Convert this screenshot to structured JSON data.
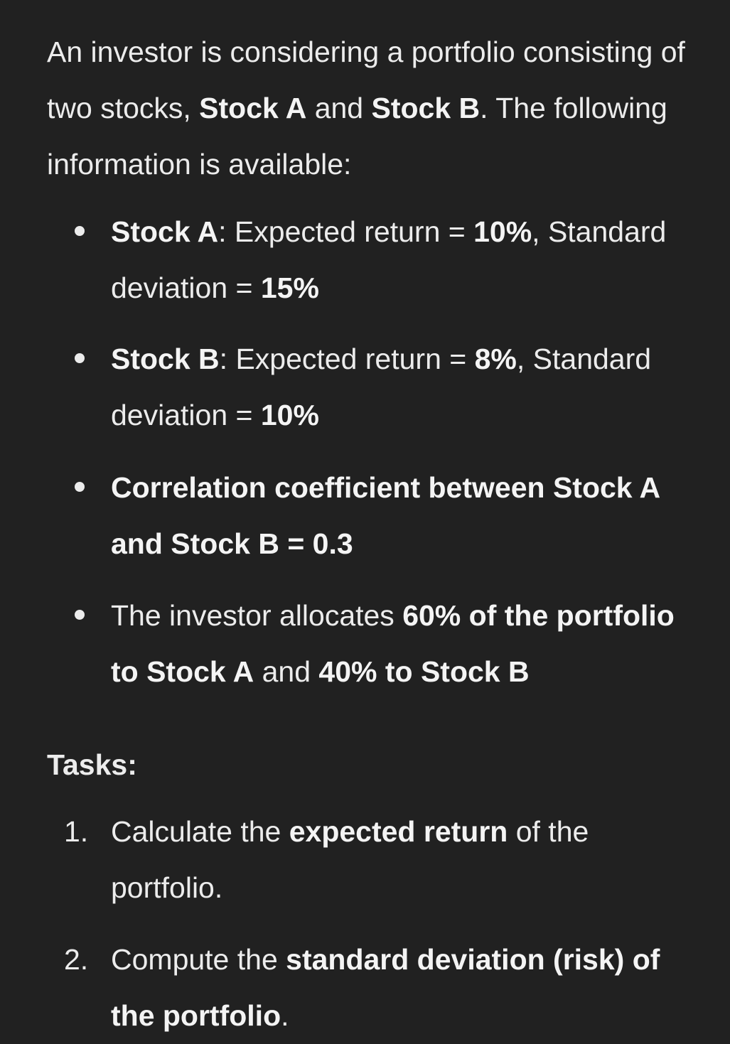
{
  "intro": {
    "t1": "An investor is considering a portfolio consisting of two stocks, ",
    "stock_a": "Stock A",
    "t2": " and ",
    "stock_b": "Stock B",
    "t3": ". The following information is available:"
  },
  "bullets": [
    {
      "b1": "Stock A",
      "t1": ": Expected return = ",
      "b2": "10%",
      "t2": ", Standard deviation = ",
      "b3": "15%"
    },
    {
      "b1": "Stock B",
      "t1": ": Expected return = ",
      "b2": "8%",
      "t2": ", Standard deviation = ",
      "b3": "10%"
    },
    {
      "b1": "Correlation coefficient between Stock A and Stock B",
      "t1": " = ",
      "b2": "0.3"
    },
    {
      "t1": "The investor allocates ",
      "b1": "60% of the portfolio to Stock A",
      "t2": " and ",
      "b2": "40% to Stock B"
    }
  ],
  "tasks_heading": "Tasks:",
  "tasks": [
    {
      "num": "1.",
      "t1": "Calculate the ",
      "b1": "expected return",
      "t2": " of the portfolio."
    },
    {
      "num": "2.",
      "t1": "Compute the ",
      "b1": "standard deviation (risk) of the portfolio",
      "t2": "."
    }
  ]
}
